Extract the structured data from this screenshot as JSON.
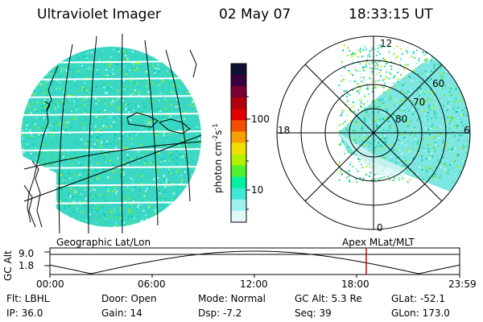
{
  "header": {
    "instrument": "Ultraviolet Imager",
    "date": "02 May 07",
    "time": "18:33:15 UT"
  },
  "colorbar": {
    "unit": "photon cm",
    "unit_exp": "-2",
    "unit_s": "s",
    "unit_s_exp": "-1",
    "tick_100": "100",
    "tick_10": "10",
    "colors": [
      "#101030",
      "#3a0040",
      "#7a0030",
      "#b00010",
      "#e00000",
      "#f05000",
      "#f5a000",
      "#f0e000",
      "#b0f000",
      "#50f030",
      "#00f0a0",
      "#40e8d8",
      "#a0f0f0",
      "#e0f8f8"
    ]
  },
  "polar": {
    "label_12": "12",
    "label_18": "18",
    "label_6": "6",
    "label_0": "0",
    "lat_60": "60",
    "lat_70": "70",
    "lat_80": "80"
  },
  "timeline": {
    "left_label": "Geographic Lat/Lon",
    "right_label": "Apex  MLat/MLT",
    "axis_title": "GC Alt",
    "y_top": "9.0",
    "y_bottom": "1.8",
    "x_ticks": [
      "00:00",
      "06:00",
      "12:00",
      "18:00",
      "23:59"
    ],
    "marker_color": "#cc0000"
  },
  "info": {
    "flt": "Flt: LBHL",
    "ip": "IP: 36.0",
    "door": "Door: Open",
    "gain": "Gain: 14",
    "mode": "Mode: Normal",
    "dsp": "Dsp:   -7.2",
    "gcalt": "GC Alt: 5.3 Re",
    "seq": "Seq: 39",
    "glat": "GLat: -52.1",
    "glon": "GLon: 173.0"
  }
}
